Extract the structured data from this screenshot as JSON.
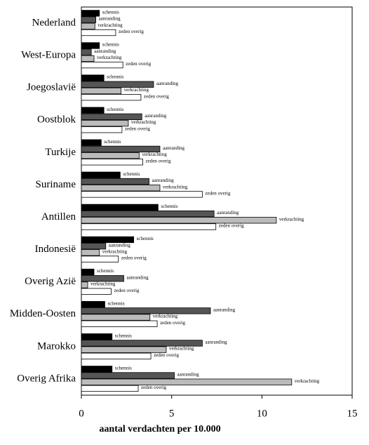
{
  "chart_data": {
    "type": "bar",
    "orientation": "horizontal",
    "x_label": "aantal verdachten per 10.000",
    "categories": [
      "Nederland",
      "West-Europa",
      "Joegoslavië",
      "Oostblok",
      "Turkije",
      "Suriname",
      "Antillen",
      "Indonesië",
      "Overig Azië",
      "Midden-Oosten",
      "Marokko",
      "Overig Afrika"
    ],
    "series": [
      {
        "name": "schennis",
        "color": "#000000",
        "values": [
          1.0,
          1.0,
          1.25,
          1.25,
          1.1,
          2.15,
          4.25,
          2.9,
          0.7,
          1.3,
          1.7,
          1.7
        ]
      },
      {
        "name": "aanranding",
        "color": "#555555",
        "values": [
          0.8,
          0.55,
          4.0,
          3.35,
          4.35,
          3.75,
          7.35,
          1.35,
          2.35,
          7.15,
          6.7,
          5.15
        ]
      },
      {
        "name": "verkrachting",
        "color": "#bbbbbb",
        "values": [
          0.75,
          0.7,
          2.2,
          2.6,
          3.2,
          4.35,
          10.8,
          1.0,
          0.35,
          3.8,
          4.7,
          11.65
        ]
      },
      {
        "name": "zeden overig",
        "color": "#ffffff",
        "values": [
          1.9,
          2.3,
          3.3,
          2.25,
          3.4,
          6.7,
          7.45,
          2.05,
          1.65,
          4.2,
          3.85,
          3.15
        ]
      }
    ],
    "xlim": [
      0,
      15
    ],
    "xticks": [
      0,
      5,
      10,
      15
    ]
  }
}
